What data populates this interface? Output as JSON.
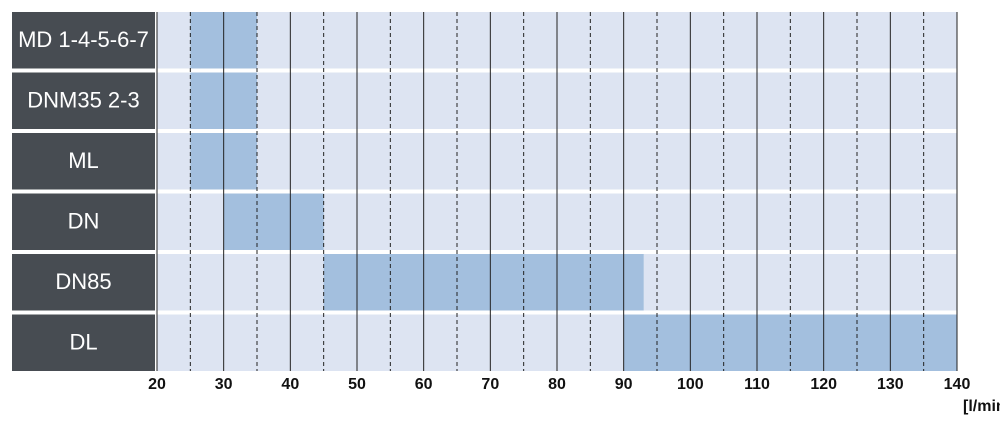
{
  "chart_data": {
    "type": "range-bar",
    "categories": [
      "MD 1-4-5-6-7",
      "DNM35 2-3",
      "ML",
      "DN",
      "DN85",
      "DL"
    ],
    "values": [
      [
        25,
        35
      ],
      [
        25,
        35
      ],
      [
        25,
        35
      ],
      [
        30,
        45
      ],
      [
        45,
        93
      ],
      [
        90,
        140
      ]
    ],
    "color": "#a3bfde",
    "background_color": "#dde4f2",
    "label_color": "#474c52",
    "xlim": [
      20,
      140
    ],
    "xticks": [
      20,
      30,
      40,
      50,
      60,
      70,
      80,
      90,
      100,
      110,
      120,
      130,
      140
    ],
    "xminor": [
      25,
      35,
      45,
      55,
      65,
      75,
      85,
      95,
      105,
      115,
      125,
      135
    ],
    "x_label": "[l/min]",
    "grid": true
  }
}
